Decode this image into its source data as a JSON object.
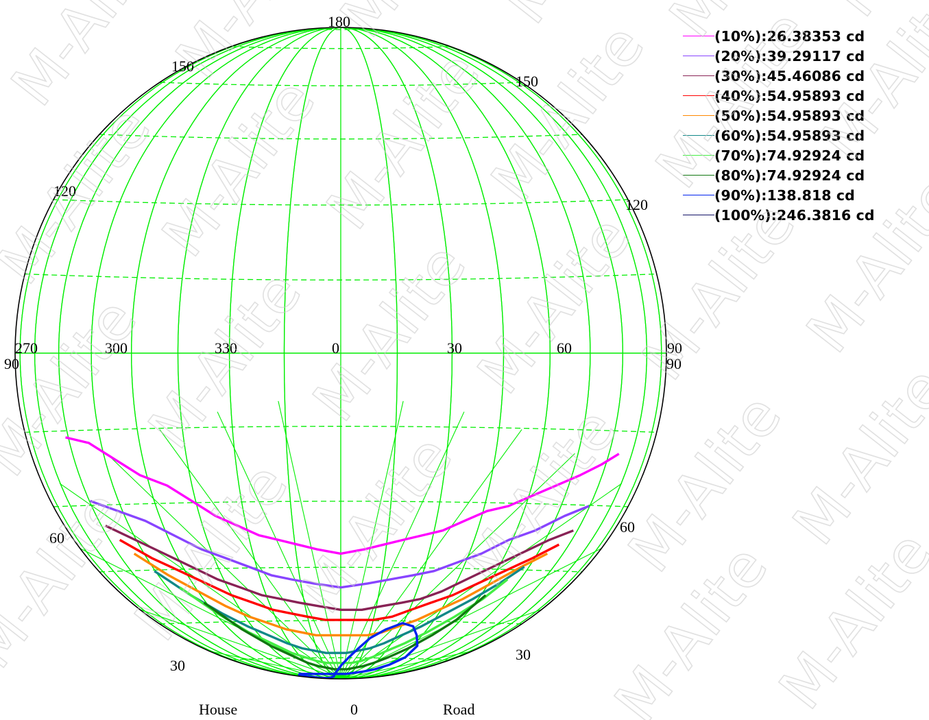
{
  "chart_data": {
    "type": "polar-isocandela",
    "meridian_labels_top": [
      "270",
      "300",
      "330",
      "0",
      "30",
      "60",
      "90"
    ],
    "left_edge_label": "90",
    "right_edge_label": "90",
    "arc_labels": {
      "top": "180",
      "upper_left": "150",
      "upper_right": "150",
      "mid_left": "120",
      "mid_right": "120",
      "lower_left": "60",
      "lower_right": "60",
      "bottom_left": "30",
      "bottom_right": "30"
    },
    "bottom_labels": {
      "left": "House",
      "center": "0",
      "right": "Road"
    },
    "grid": true,
    "grid_color": "#00ee00",
    "watermark": "M-Alite",
    "series": [
      {
        "name": "(10%):26.38353 cd",
        "color": "#ff00ff",
        "points": [
          [
            -150,
            75
          ],
          [
            -138,
            74
          ],
          [
            -126,
            71
          ],
          [
            -114,
            68
          ],
          [
            -100,
            66
          ],
          [
            -88,
            63
          ],
          [
            -76,
            60
          ],
          [
            -64,
            58
          ],
          [
            -52,
            56
          ],
          [
            -40,
            55
          ],
          [
            -28,
            54
          ],
          [
            -16,
            53
          ],
          [
            0,
            52
          ],
          [
            16,
            53
          ],
          [
            28,
            54
          ],
          [
            40,
            55
          ],
          [
            52,
            56
          ],
          [
            64,
            57
          ],
          [
            76,
            59
          ],
          [
            88,
            61
          ],
          [
            100,
            62
          ],
          [
            112,
            64
          ],
          [
            124,
            66
          ],
          [
            136,
            68
          ],
          [
            146,
            70
          ],
          [
            154,
            72
          ]
        ]
      },
      {
        "name": "(20%):39.29117 cd",
        "color": "#8844ff",
        "points": [
          [
            -148,
            63
          ],
          [
            -134,
            61
          ],
          [
            -120,
            59
          ],
          [
            -106,
            56
          ],
          [
            -92,
            53
          ],
          [
            -78,
            51
          ],
          [
            -64,
            49
          ],
          [
            -50,
            47
          ],
          [
            -36,
            46
          ],
          [
            -20,
            45
          ],
          [
            0,
            44
          ],
          [
            20,
            45
          ],
          [
            36,
            46
          ],
          [
            52,
            47
          ],
          [
            66,
            48
          ],
          [
            80,
            50
          ],
          [
            94,
            52
          ],
          [
            108,
            55
          ],
          [
            122,
            57
          ],
          [
            136,
            60
          ],
          [
            148,
            62
          ]
        ]
      },
      {
        "name": "(30%):45.46086 cd",
        "color": "#882255",
        "points": [
          [
            -146,
            58
          ],
          [
            -132,
            55
          ],
          [
            -118,
            52
          ],
          [
            -104,
            49
          ],
          [
            -90,
            46
          ],
          [
            -76,
            44
          ],
          [
            -62,
            42
          ],
          [
            -48,
            41
          ],
          [
            -34,
            40
          ],
          [
            -18,
            39
          ],
          [
            0,
            38
          ],
          [
            18,
            38
          ],
          [
            34,
            39
          ],
          [
            50,
            40
          ],
          [
            64,
            41
          ],
          [
            78,
            43
          ],
          [
            92,
            46
          ],
          [
            106,
            49
          ],
          [
            120,
            52
          ],
          [
            134,
            55
          ],
          [
            146,
            57
          ]
        ]
      },
      {
        "name": "(40%):54.95893 cd",
        "color": "#ff0000",
        "points": [
          [
            -142,
            55
          ],
          [
            -128,
            51
          ],
          [
            -114,
            48
          ],
          [
            -100,
            45
          ],
          [
            -86,
            42
          ],
          [
            -72,
            40
          ],
          [
            -58,
            38
          ],
          [
            -44,
            37
          ],
          [
            -30,
            36
          ],
          [
            -14,
            35
          ],
          [
            0,
            35
          ],
          [
            16,
            35
          ],
          [
            30,
            35
          ],
          [
            46,
            36
          ],
          [
            60,
            38
          ],
          [
            74,
            40
          ],
          [
            88,
            42
          ],
          [
            102,
            45
          ],
          [
            116,
            48
          ],
          [
            130,
            51
          ],
          [
            142,
            54
          ]
        ]
      },
      {
        "name": "(50%):54.95893 cd",
        "color": "#ff8800",
        "points": [
          [
            -138,
            52
          ],
          [
            -124,
            47
          ],
          [
            -110,
            43
          ],
          [
            -96,
            39
          ],
          [
            -82,
            36
          ],
          [
            -68,
            34
          ],
          [
            -54,
            32
          ],
          [
            -40,
            31
          ],
          [
            -26,
            30
          ],
          [
            -12,
            30
          ],
          [
            0,
            30
          ],
          [
            14,
            30
          ],
          [
            28,
            30
          ],
          [
            42,
            31
          ],
          [
            56,
            33
          ],
          [
            70,
            35
          ],
          [
            84,
            38
          ],
          [
            98,
            41
          ],
          [
            112,
            45
          ],
          [
            126,
            49
          ],
          [
            138,
            52
          ]
        ]
      },
      {
        "name": "(60%):54.95893 cd",
        "color": "#118888",
        "points": [
          [
            -132,
            48
          ],
          [
            -118,
            42
          ],
          [
            -104,
            37
          ],
          [
            -90,
            33
          ],
          [
            -76,
            30
          ],
          [
            -62,
            27
          ],
          [
            -48,
            25
          ],
          [
            -34,
            24
          ],
          [
            -20,
            23
          ],
          [
            -6,
            23
          ],
          [
            8,
            23
          ],
          [
            22,
            24
          ],
          [
            36,
            25
          ],
          [
            50,
            27
          ],
          [
            64,
            30
          ],
          [
            78,
            33
          ],
          [
            92,
            37
          ],
          [
            106,
            41
          ],
          [
            118,
            45
          ],
          [
            128,
            49
          ]
        ]
      },
      {
        "name": "(70%):74.92924 cd",
        "color": "#44ee44",
        "points": [
          [
            -122,
            44
          ],
          [
            -108,
            37
          ],
          [
            -94,
            31
          ],
          [
            -80,
            27
          ],
          [
            -66,
            23
          ],
          [
            -52,
            21
          ],
          [
            -38,
            19
          ],
          [
            -24,
            18
          ],
          [
            -10,
            18
          ],
          [
            4,
            18
          ],
          [
            18,
            18
          ],
          [
            32,
            19
          ],
          [
            46,
            21
          ],
          [
            60,
            24
          ],
          [
            74,
            27
          ],
          [
            88,
            31
          ],
          [
            102,
            36
          ],
          [
            114,
            41
          ],
          [
            122,
            46
          ]
        ]
      },
      {
        "name": "(80%):74.92924 cd",
        "color": "#117711",
        "points": [
          [
            -112,
            40
          ],
          [
            -98,
            32
          ],
          [
            -84,
            26
          ],
          [
            -70,
            22
          ],
          [
            -56,
            18
          ],
          [
            -42,
            16
          ],
          [
            -28,
            15
          ],
          [
            -14,
            14
          ],
          [
            0,
            14
          ],
          [
            14,
            14
          ],
          [
            28,
            15
          ],
          [
            42,
            16
          ],
          [
            56,
            18
          ],
          [
            70,
            21
          ],
          [
            84,
            25
          ],
          [
            96,
            30
          ],
          [
            106,
            35
          ],
          [
            114,
            42
          ]
        ]
      },
      {
        "name": "(90%):138.818 cd",
        "color": "#0022ee",
        "points": [
          [
            -150,
            8
          ],
          [
            -140,
            9
          ],
          [
            -125,
            10
          ],
          [
            -105,
            10
          ],
          [
            -85,
            10
          ],
          [
            -65,
            10
          ],
          [
            -45,
            10
          ],
          [
            -25,
            10
          ],
          [
            -5,
            10
          ],
          [
            15,
            10
          ],
          [
            35,
            11
          ],
          [
            55,
            12
          ],
          [
            75,
            14
          ],
          [
            88,
            17
          ],
          [
            95,
            21
          ],
          [
            92,
            26
          ],
          [
            80,
            30
          ],
          [
            70,
            33
          ],
          [
            58,
            34
          ],
          [
            45,
            32
          ],
          [
            32,
            29
          ],
          [
            22,
            25
          ],
          [
            12,
            21
          ],
          [
            2,
            17
          ],
          [
            -8,
            13
          ],
          [
            -18,
            10
          ],
          [
            -30,
            7
          ],
          [
            -60,
            5
          ],
          [
            -100,
            4
          ],
          [
            -140,
            4
          ],
          [
            -150,
            8
          ]
        ]
      },
      {
        "name": "(100%):246.3816 cd",
        "color": "#111166",
        "points": []
      }
    ]
  },
  "legend_items": [
    {
      "label": "(10%):26.38353 cd",
      "color": "#ff00ff"
    },
    {
      "label": "(20%):39.29117 cd",
      "color": "#8844ff"
    },
    {
      "label": "(30%):45.46086 cd",
      "color": "#882255"
    },
    {
      "label": "(40%):54.95893 cd",
      "color": "#ff0000"
    },
    {
      "label": "(50%):54.95893 cd",
      "color": "#ff8800"
    },
    {
      "label": "(60%):54.95893 cd",
      "color": "#118888"
    },
    {
      "label": "(70%):74.92924 cd",
      "color": "#44ee44"
    },
    {
      "label": "(80%):74.92924 cd",
      "color": "#117711"
    },
    {
      "label": "(90%):138.818 cd",
      "color": "#0022ee"
    },
    {
      "label": "(100%):246.3816 cd",
      "color": "#111166"
    }
  ]
}
